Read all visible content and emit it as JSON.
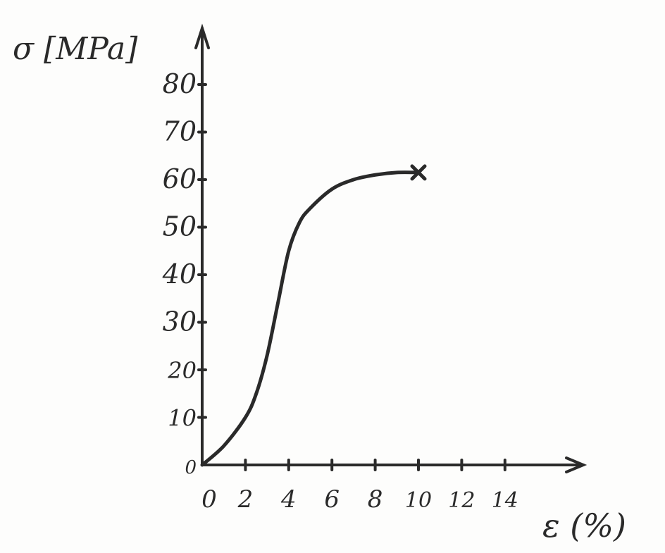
{
  "chart_data": {
    "type": "line",
    "xlabel": "ε (%)",
    "ylabel": "σ [MPa]",
    "xlim": [
      0,
      18
    ],
    "ylim": [
      0,
      90
    ],
    "x_ticks": [
      0,
      2,
      4,
      6,
      8,
      10,
      12,
      14
    ],
    "y_ticks": [
      0,
      10,
      20,
      30,
      40,
      50,
      60,
      70,
      80
    ],
    "grid": false,
    "series": [
      {
        "x": [
          0,
          1,
          2,
          2.5,
          3,
          3.5,
          4,
          4.5,
          5,
          6,
          7,
          8,
          9,
          10
        ],
        "y": [
          0,
          4,
          10,
          15,
          23,
          34,
          45,
          51,
          54,
          58,
          60,
          61,
          61.5,
          61.5
        ],
        "end_marker": "x"
      }
    ]
  }
}
